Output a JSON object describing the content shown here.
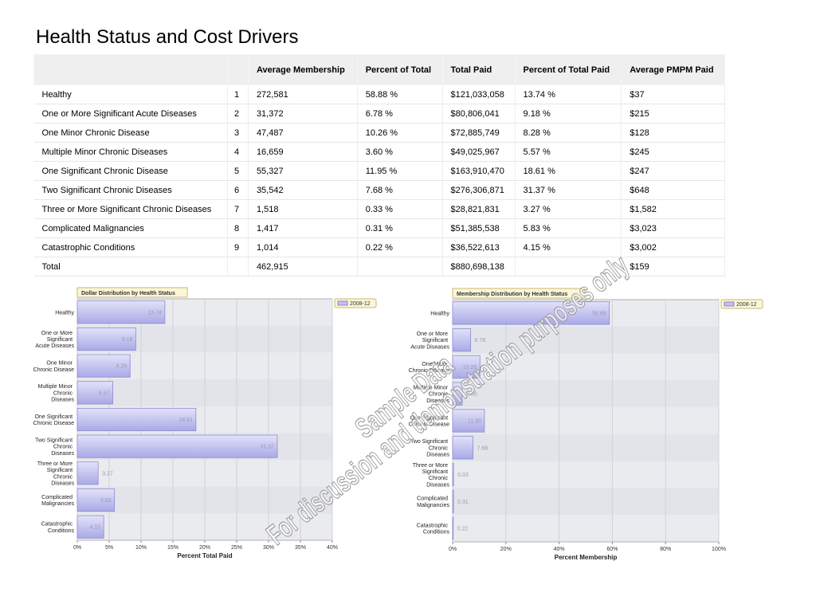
{
  "title": "Health Status and Cost Drivers",
  "table": {
    "header": [
      "Average Membership",
      "Percent of Total",
      "Total Paid",
      "Percent of Total Paid",
      "Average PMPM Paid"
    ],
    "rows": [
      [
        "Healthy",
        "1",
        "272,581",
        "58.88 %",
        "$121,033,058",
        "13.74 %",
        "$37"
      ],
      [
        "One or More Significant Acute Diseases",
        "2",
        "31,372",
        "6.78 %",
        "$80,806,041",
        "9.18 %",
        "$215"
      ],
      [
        "One Minor Chronic Disease",
        "3",
        "47,487",
        "10.26 %",
        "$72,885,749",
        "8.28 %",
        "$128"
      ],
      [
        "Multiple Minor Chronic Diseases",
        "4",
        "16,659",
        "3.60 %",
        "$49,025,967",
        "5.57 %",
        "$245"
      ],
      [
        "One Significant Chronic Disease",
        "5",
        "55,327",
        "11.95 %",
        "$163,910,470",
        "18.61 %",
        "$247"
      ],
      [
        "Two Significant Chronic Diseases",
        "6",
        "35,542",
        "7.68 %",
        "$276,306,871",
        "31.37 %",
        "$648"
      ],
      [
        "Three or More Significant Chronic Diseases",
        "7",
        "1,518",
        "0.33 %",
        "$28,821,831",
        "3.27 %",
        "$1,582"
      ],
      [
        "Complicated Malignancies",
        "8",
        "1,417",
        "0.31 %",
        "$51,385,538",
        "5.83 %",
        "$3,023"
      ],
      [
        "Catastrophic Conditions",
        "9",
        "1,014",
        "0.22 %",
        "$36,522,613",
        "4.15 %",
        "$3,002"
      ]
    ],
    "total": {
      "label": "Total",
      "average_membership": "462,915",
      "total_paid": "$880,698,138",
      "average_pmpm_paid": "$159"
    }
  },
  "chart_data": [
    {
      "type": "hbar",
      "title": "Dollar Distribution by Health Status",
      "xlabel": "Percent Total Paid",
      "legend": "2008-12",
      "color": "#c2c2f0",
      "categories": [
        "Healthy",
        "One or More Significant Acute Diseases",
        "One Minor Chronic Disease",
        "Multiple Minor Chronic Diseases",
        "One Significant Chronic Disease",
        "Two Significant Chronic Diseases",
        "Three or More Significant Chronic Diseases",
        "Complicated Malignancies",
        "Catastrophic Conditions"
      ],
      "values": [
        13.74,
        9.18,
        8.28,
        5.57,
        18.61,
        31.37,
        3.27,
        5.83,
        4.15
      ],
      "xlim": [
        0,
        40
      ],
      "xticks": [
        {
          "value": 0,
          "label": "0%"
        },
        {
          "value": 5,
          "label": "5%"
        },
        {
          "value": 10,
          "label": "10%"
        },
        {
          "value": 15,
          "label": "15%"
        },
        {
          "value": 20,
          "label": "20%"
        },
        {
          "value": 25,
          "label": "25%"
        },
        {
          "value": 30,
          "label": "30%"
        },
        {
          "value": 35,
          "label": "35%"
        },
        {
          "value": 40,
          "label": "40%"
        }
      ],
      "grid": true
    },
    {
      "type": "hbar",
      "title": "Membership Distribution by Health Status",
      "xlabel": "Percent Membership",
      "legend": "2008-12",
      "color": "#c2c2f0",
      "categories": [
        "Healthy",
        "One or More Significant Acute Diseases",
        "One Minor Chronic Disease",
        "Multiple Minor Chronic Diseases",
        "One Significant Chronic Disease",
        "Two Significant Chronic Diseases",
        "Three or More Significant Chronic Diseases",
        "Complicated Malignancies",
        "Catastrophic Conditions"
      ],
      "values": [
        58.88,
        6.78,
        10.26,
        3.6,
        11.95,
        7.68,
        0.33,
        0.31,
        0.22
      ],
      "value_labels": [
        "58.88",
        "6.78",
        "10.26",
        "3.60",
        "11.95",
        "7.68",
        "0.33",
        "0.31",
        "0.22"
      ],
      "xlim": [
        0,
        100
      ],
      "xticks": [
        {
          "value": 0,
          "label": "0%"
        },
        {
          "value": 20,
          "label": "20%"
        },
        {
          "value": 40,
          "label": "40%"
        },
        {
          "value": 60,
          "label": "60%"
        },
        {
          "value": 80,
          "label": "80%"
        },
        {
          "value": 100,
          "label": "100%"
        }
      ],
      "grid": true
    }
  ],
  "watermark": [
    "Sample Data",
    "For discussion and demonstration purposes only"
  ]
}
